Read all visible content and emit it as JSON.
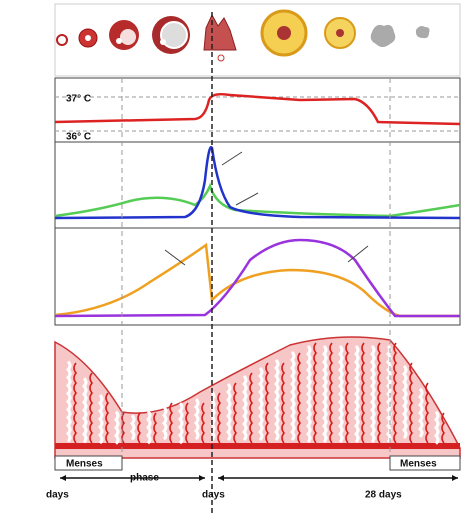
{
  "temperature": {
    "high": "37° C",
    "low": "36° C"
  },
  "phases": {
    "menses_start": "Menses",
    "follicular": "phase",
    "menses_end": "Menses"
  },
  "axis": {
    "start": "days",
    "ovulation": "days",
    "end": "28 days"
  }
}
